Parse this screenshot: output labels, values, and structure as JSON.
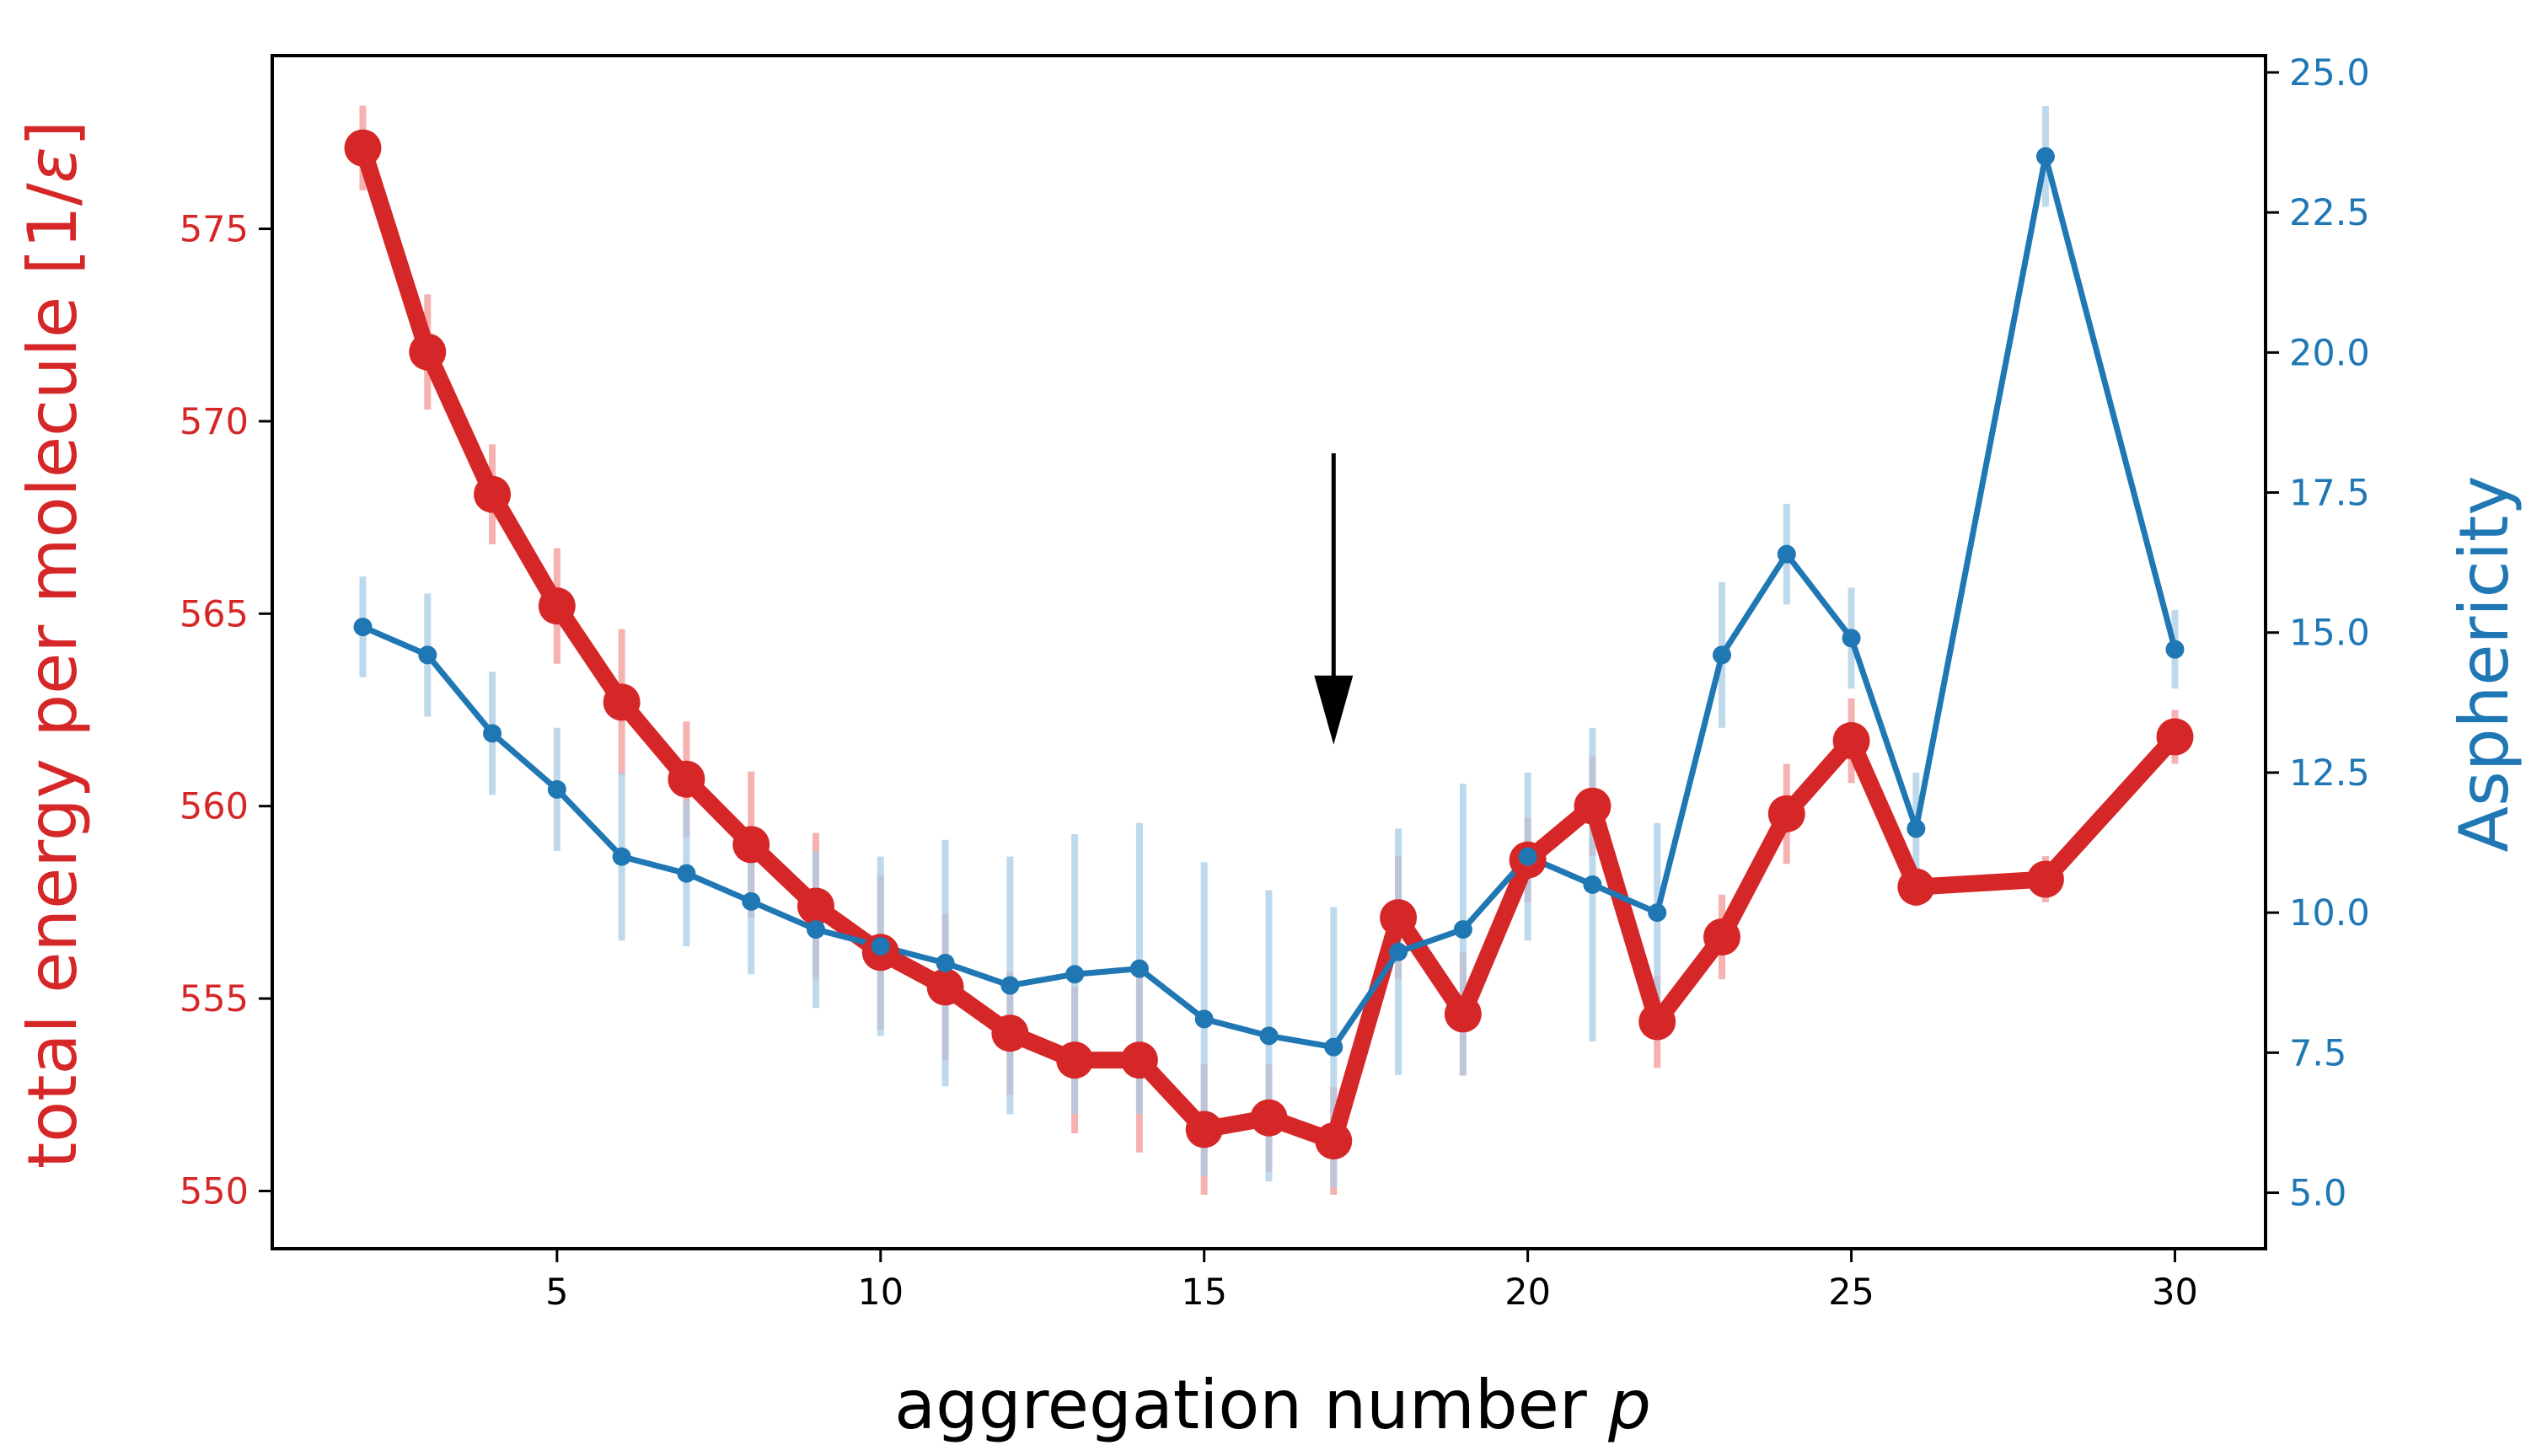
{
  "chart_data": {
    "type": "line",
    "xlabel": "aggregation number p",
    "xlabel_text": "aggregation number ",
    "xlabel_var": "p",
    "ylabel_left": "total energy per molecule [1/ε]",
    "ylabel_left_text": "total energy per molecule [1/",
    "ylabel_left_var": "ε",
    "ylabel_left_close": "]",
    "ylabel_right": "Asphericity",
    "xlim": [
      0.6,
      31.4
    ],
    "ylim_left": [
      548.5,
      579.5
    ],
    "ylim_right": [
      4.0,
      25.3
    ],
    "xticks": [
      5,
      10,
      15,
      20,
      25,
      30
    ],
    "yticks_left": [
      550,
      555,
      560,
      565,
      570,
      575
    ],
    "yticks_right": [
      "5.0",
      "7.5",
      "10.0",
      "12.5",
      "15.0",
      "17.5",
      "20.0",
      "22.5",
      "25.0"
    ],
    "annotation": {
      "type": "arrow",
      "x": 17,
      "from_right_y": 18.2,
      "to_right_y": 13.0
    },
    "colors": {
      "energy": "#d62728",
      "energy_err": "#f4a3a3",
      "asphericity": "#1f77b4",
      "asphericity_err": "#a9cce6",
      "arrow": "#000000",
      "axis": "#000000"
    },
    "series": [
      {
        "name": "total energy per molecule",
        "axis": "left",
        "x": [
          2,
          3,
          4,
          5,
          6,
          7,
          8,
          9,
          10,
          11,
          12,
          13,
          14,
          15,
          16,
          17,
          18,
          19,
          20,
          21,
          22,
          23,
          24,
          25,
          26,
          28,
          30
        ],
        "y": [
          577.1,
          571.8,
          568.1,
          565.2,
          562.7,
          560.7,
          559.0,
          557.4,
          556.2,
          555.3,
          554.1,
          553.4,
          553.4,
          551.6,
          551.9,
          551.3,
          557.1,
          554.6,
          558.6,
          560.0,
          554.4,
          556.6,
          559.8,
          561.7,
          557.9,
          558.1,
          561.8
        ],
        "err": [
          1.1,
          1.5,
          1.3,
          1.5,
          1.9,
          1.5,
          1.9,
          1.9,
          2.0,
          1.9,
          1.6,
          1.9,
          2.4,
          1.7,
          1.4,
          1.4,
          1.6,
          1.6,
          1.1,
          1.3,
          1.2,
          1.1,
          1.3,
          1.1,
          0.5,
          0.6,
          0.7
        ]
      },
      {
        "name": "Asphericity",
        "axis": "right",
        "x": [
          2,
          3,
          4,
          5,
          6,
          7,
          8,
          9,
          10,
          11,
          12,
          13,
          14,
          15,
          16,
          17,
          18,
          19,
          20,
          21,
          22,
          23,
          24,
          25,
          26,
          28,
          30
        ],
        "y": [
          15.1,
          14.6,
          13.2,
          12.2,
          11.0,
          10.7,
          10.2,
          9.7,
          9.4,
          9.1,
          8.7,
          8.9,
          9.0,
          8.1,
          7.8,
          7.6,
          9.3,
          9.7,
          11.0,
          10.5,
          10.0,
          14.6,
          16.4,
          14.9,
          11.5,
          23.5,
          14.7
        ],
        "err": [
          0.9,
          1.1,
          1.1,
          1.1,
          1.5,
          1.3,
          1.3,
          1.4,
          1.6,
          2.2,
          2.3,
          2.5,
          2.6,
          2.8,
          2.6,
          2.5,
          2.2,
          2.6,
          1.5,
          2.8,
          1.6,
          1.3,
          0.9,
          0.9,
          1.0,
          0.9,
          0.7
        ]
      }
    ]
  }
}
